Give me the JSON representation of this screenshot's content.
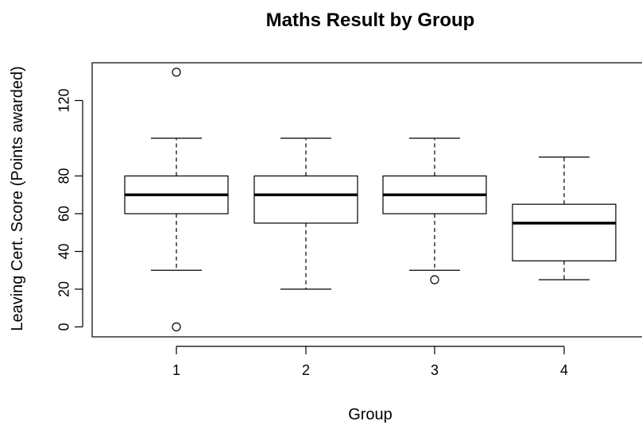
{
  "chart_data": {
    "type": "box",
    "title": "Maths Result by Group",
    "xlabel": "Group",
    "ylabel": "Leaving Cert. Score (Points awarded)",
    "categories": [
      "1",
      "2",
      "3",
      "4"
    ],
    "yticks": [
      0,
      20,
      40,
      60,
      80,
      120
    ],
    "ylim": [
      -5,
      140
    ],
    "boxes": [
      {
        "group": "1",
        "whisker_low": 30,
        "q1": 60,
        "median": 70,
        "q3": 80,
        "whisker_high": 100,
        "outliers": [
          0,
          135
        ]
      },
      {
        "group": "2",
        "whisker_low": 20,
        "q1": 55,
        "median": 70,
        "q3": 80,
        "whisker_high": 100,
        "outliers": []
      },
      {
        "group": "3",
        "whisker_low": 30,
        "q1": 60,
        "median": 70,
        "q3": 80,
        "whisker_high": 100,
        "outliers": [
          25
        ]
      },
      {
        "group": "4",
        "whisker_low": 25,
        "q1": 35,
        "median": 55,
        "q3": 65,
        "whisker_high": 90,
        "outliers": []
      }
    ],
    "grid": false,
    "legend": "none"
  }
}
